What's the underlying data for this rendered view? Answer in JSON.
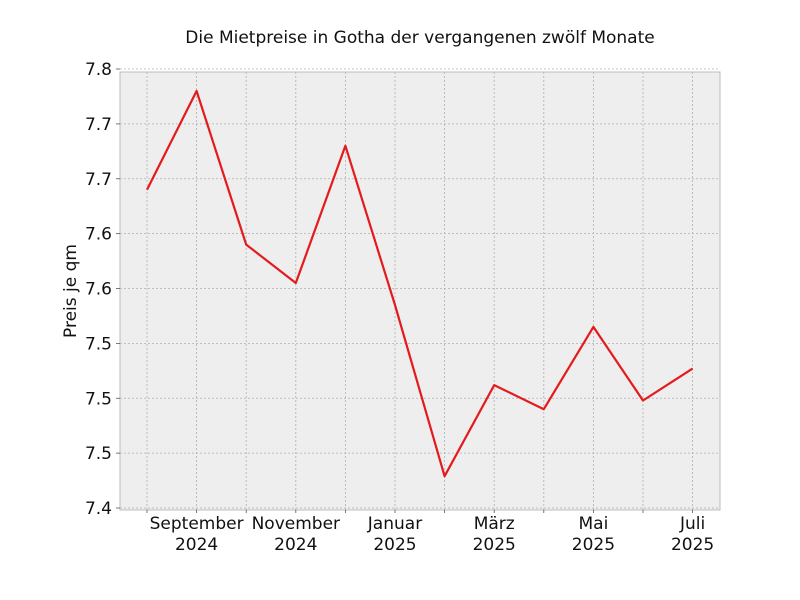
{
  "chart_data": {
    "type": "line",
    "title": "Die Mietpreise in Gotha der vergangenen zwölf Monate",
    "xlabel": "",
    "ylabel": "Preis je qm",
    "x": [
      "2024-08",
      "2024-09",
      "2024-10",
      "2024-11",
      "2024-12",
      "2025-01",
      "2025-02",
      "2025-03",
      "2025-04",
      "2025-05",
      "2025-06",
      "2025-07"
    ],
    "series": [
      {
        "values": [
          7.69,
          7.78,
          7.64,
          7.605,
          7.73,
          7.585,
          7.429,
          7.512,
          7.49,
          7.565,
          7.498,
          7.527
        ]
      }
    ],
    "ylim": [
      7.4,
      7.79
    ],
    "y_ticks": [
      7.4,
      7.45,
      7.5,
      7.55,
      7.6,
      7.65,
      7.7,
      7.75,
      7.8
    ],
    "y_tick_labels": [
      "7.4",
      "7.5",
      "7.5",
      "7.5",
      "7.6",
      "7.6",
      "7.7",
      "7.7",
      "7.8"
    ],
    "x_tick_labels": [
      {
        "month": "2024-09",
        "line1": "September",
        "line2": "2024"
      },
      {
        "month": "2024-11",
        "line1": "November",
        "line2": "2024"
      },
      {
        "month": "2025-01",
        "line1": "Januar",
        "line2": "2025"
      },
      {
        "month": "2025-03",
        "line1": "März",
        "line2": "2025"
      },
      {
        "month": "2025-05",
        "line1": "Mai",
        "line2": "2025"
      },
      {
        "month": "2025-07",
        "line1": "Juli",
        "line2": "2025"
      }
    ],
    "grid": true,
    "colors": {
      "line": "#e41a1c",
      "plot_bg": "#eeeeee",
      "grid": "#b0b0b0",
      "frame": "#bcbcbc"
    }
  }
}
